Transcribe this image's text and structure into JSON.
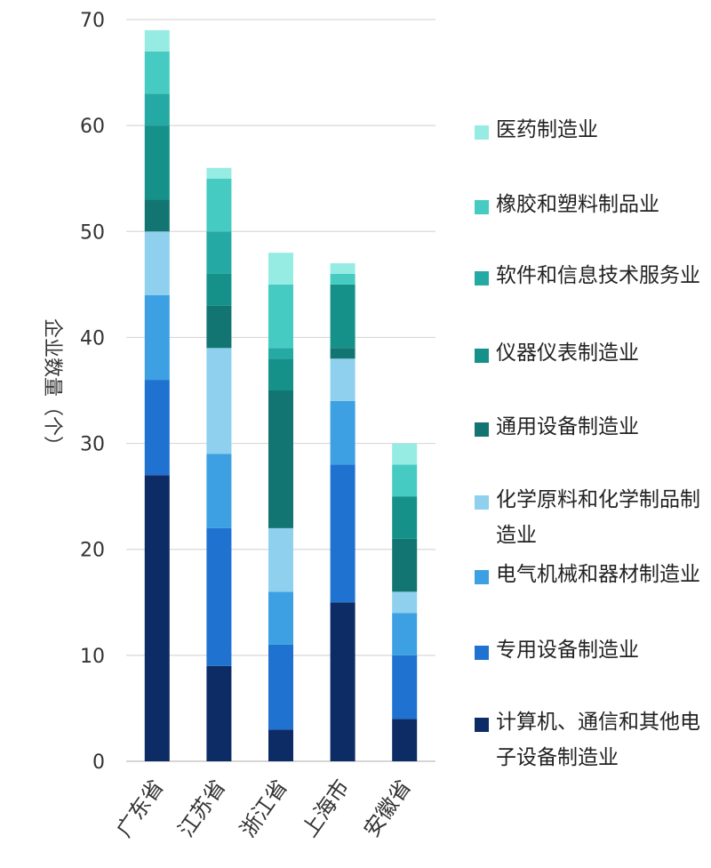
{
  "chart_data": {
    "type": "bar",
    "stacked": true,
    "categories": [
      "广东省",
      "江苏省",
      "浙江省",
      "上海市",
      "安徽省"
    ],
    "ylabel": "企业数量（个）",
    "xlabel": "",
    "ylim": [
      0,
      70
    ],
    "yticks": [
      0,
      10,
      20,
      30,
      40,
      50,
      60,
      70
    ],
    "grid": true,
    "legend_position": "right",
    "series": [
      {
        "name": "计算机、通信和其他电子设备制造业",
        "color": "#0d2c66",
        "values": [
          27,
          9,
          3,
          15,
          4
        ]
      },
      {
        "name": "专用设备制造业",
        "color": "#1f72cf",
        "values": [
          9,
          13,
          8,
          13,
          6
        ]
      },
      {
        "name": "电气机械和器材制造业",
        "color": "#3da0e3",
        "values": [
          8,
          7,
          5,
          6,
          4
        ]
      },
      {
        "name": "化学原料和化学制品制造业",
        "color": "#8ed0ee",
        "values": [
          6,
          10,
          6,
          4,
          2
        ]
      },
      {
        "name": "通用设备制造业",
        "color": "#127571",
        "values": [
          3,
          4,
          13,
          1,
          5
        ]
      },
      {
        "name": "仪器仪表制造业",
        "color": "#15918a",
        "values": [
          7,
          3,
          3,
          6,
          4
        ]
      },
      {
        "name": "软件和信息技术服务业",
        "color": "#25a9a4",
        "values": [
          3,
          4,
          1,
          0,
          0
        ]
      },
      {
        "name": "橡胶和塑料制品业",
        "color": "#46cbc3",
        "values": [
          4,
          5,
          6,
          1,
          3
        ]
      },
      {
        "name": "医药制造业",
        "color": "#96ece3",
        "values": [
          2,
          1,
          3,
          1,
          2
        ]
      }
    ]
  }
}
